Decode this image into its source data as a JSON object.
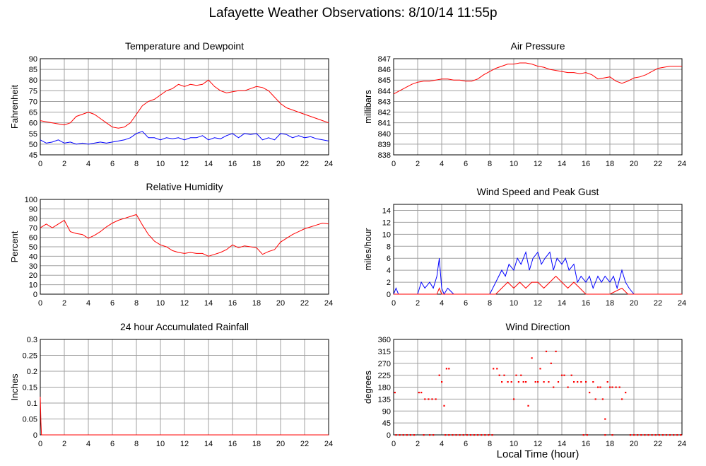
{
  "title": "Lafayette Weather Observations: 8/10/14 11:55p",
  "x_axis_caption": "Local Time (hour)",
  "colors": {
    "red": "#ff0000",
    "blue": "#0000ff",
    "grid": "#a0a0a0"
  },
  "chart_data": [
    {
      "id": "temp",
      "type": "line",
      "title": "Temperature and Dewpoint",
      "ylabel": "Fahrenheit",
      "xlabel": "",
      "xlim": [
        0,
        24
      ],
      "ylim": [
        45,
        90
      ],
      "xticks": [
        0,
        2,
        4,
        6,
        8,
        10,
        12,
        14,
        16,
        18,
        20,
        22,
        24
      ],
      "yticks": [
        45,
        50,
        55,
        60,
        65,
        70,
        75,
        80,
        85,
        90
      ],
      "grid": true,
      "series": [
        {
          "color": "#ff0000",
          "x": [
            0,
            0.5,
            1,
            1.5,
            2,
            2.5,
            3,
            3.5,
            4,
            4.5,
            5,
            5.5,
            6,
            6.5,
            7,
            7.5,
            8,
            8.5,
            9,
            9.5,
            10,
            10.5,
            11,
            11.5,
            12,
            12.5,
            13,
            13.5,
            14,
            14.5,
            15,
            15.5,
            16,
            16.5,
            17,
            17.5,
            18,
            18.5,
            19,
            19.5,
            20,
            20.5,
            21,
            21.5,
            22,
            22.5,
            23,
            23.5,
            24
          ],
          "values": [
            61,
            60.5,
            60,
            59.5,
            59,
            60,
            63,
            64,
            65,
            64,
            62,
            60,
            58,
            57.5,
            58,
            60,
            64,
            68,
            70,
            71,
            73,
            75,
            76,
            78,
            77,
            78,
            77.5,
            78,
            80,
            77,
            75,
            74,
            74.5,
            75,
            75,
            76,
            77,
            76.5,
            75,
            72,
            69,
            67,
            66,
            65,
            64,
            63,
            62,
            61,
            60
          ]
        },
        {
          "color": "#0000ff",
          "x": [
            0,
            0.5,
            1,
            1.5,
            2,
            2.5,
            3,
            3.5,
            4,
            4.5,
            5,
            5.5,
            6,
            6.5,
            7,
            7.5,
            8,
            8.5,
            9,
            9.5,
            10,
            10.5,
            11,
            11.5,
            12,
            12.5,
            13,
            13.5,
            14,
            14.5,
            15,
            15.5,
            16,
            16.5,
            17,
            17.5,
            18,
            18.5,
            19,
            19.5,
            20,
            20.5,
            21,
            21.5,
            22,
            22.5,
            23,
            23.5,
            24
          ],
          "values": [
            52,
            50.5,
            51,
            52,
            50.5,
            51,
            50,
            50.5,
            50,
            50.5,
            51,
            50.5,
            51,
            51.5,
            52,
            53,
            55,
            56,
            53,
            53,
            52,
            53,
            52.5,
            53,
            52,
            53,
            53,
            54,
            52,
            53,
            52.5,
            54,
            55,
            53,
            55,
            54.5,
            55,
            52,
            53,
            52,
            55,
            54.5,
            53,
            54,
            53,
            53.5,
            52.5,
            52,
            51.5
          ]
        }
      ]
    },
    {
      "id": "press",
      "type": "line",
      "title": "Air Pressure",
      "ylabel": "millibars",
      "xlabel": "",
      "xlim": [
        0,
        24
      ],
      "ylim": [
        838,
        847
      ],
      "xticks": [
        0,
        2,
        4,
        6,
        8,
        10,
        12,
        14,
        16,
        18,
        20,
        22,
        24
      ],
      "yticks": [
        838,
        839,
        840,
        841,
        842,
        843,
        844,
        845,
        846,
        847
      ],
      "grid": true,
      "series": [
        {
          "color": "#ff0000",
          "x": [
            0,
            0.5,
            1,
            1.5,
            2,
            2.5,
            3,
            3.5,
            4,
            4.5,
            5,
            5.5,
            6,
            6.5,
            7,
            7.5,
            8,
            8.5,
            9,
            9.5,
            10,
            10.5,
            11,
            11.5,
            12,
            12.5,
            13,
            13.5,
            14,
            14.5,
            15,
            15.5,
            16,
            16.5,
            17,
            17.5,
            18,
            18.5,
            19,
            19.5,
            20,
            20.5,
            21,
            21.5,
            22,
            22.5,
            23,
            23.5,
            24
          ],
          "values": [
            843.7,
            844,
            844.3,
            844.6,
            844.8,
            844.9,
            844.9,
            845,
            845.1,
            845.1,
            845,
            845,
            844.9,
            844.9,
            845.1,
            845.5,
            845.8,
            846.1,
            846.3,
            846.5,
            846.5,
            846.6,
            846.6,
            846.5,
            846.3,
            846.2,
            846,
            845.9,
            845.8,
            845.7,
            845.7,
            845.6,
            845.7,
            845.5,
            845.1,
            845.2,
            845.3,
            844.9,
            844.7,
            844.9,
            845.2,
            845.3,
            845.5,
            845.8,
            846.1,
            846.2,
            846.3,
            846.3,
            846.3
          ]
        }
      ]
    },
    {
      "id": "rh",
      "type": "line",
      "title": "Relative Humidity",
      "ylabel": "Percent",
      "xlabel": "",
      "xlim": [
        0,
        24
      ],
      "ylim": [
        0,
        100
      ],
      "xticks": [
        0,
        2,
        4,
        6,
        8,
        10,
        12,
        14,
        16,
        18,
        20,
        22,
        24
      ],
      "yticks": [
        0,
        10,
        20,
        30,
        40,
        50,
        60,
        70,
        80,
        90,
        100
      ],
      "grid": true,
      "series": [
        {
          "color": "#ff0000",
          "x": [
            0,
            0.5,
            1,
            1.5,
            2,
            2.5,
            3,
            3.5,
            4,
            4.5,
            5,
            5.5,
            6,
            6.5,
            7,
            7.5,
            8,
            8.5,
            9,
            9.5,
            10,
            10.5,
            11,
            11.5,
            12,
            12.5,
            13,
            13.5,
            14,
            14.5,
            15,
            15.5,
            16,
            16.5,
            17,
            17.5,
            18,
            18.5,
            19,
            19.5,
            20,
            20.5,
            21,
            21.5,
            22,
            22.5,
            23,
            23.5,
            24
          ],
          "values": [
            70,
            74,
            70,
            74,
            78,
            66,
            64,
            63,
            59,
            62,
            66,
            71,
            75,
            78,
            80,
            82,
            84,
            73,
            63,
            56,
            52,
            50,
            46,
            44,
            43,
            44,
            43,
            43,
            40,
            42,
            44,
            47,
            52,
            49,
            51,
            50,
            49,
            42,
            45,
            47,
            55,
            59,
            63,
            66,
            69,
            71,
            73,
            75,
            74
          ]
        }
      ]
    },
    {
      "id": "wind",
      "type": "line",
      "title": "Wind Speed and Peak Gust",
      "ylabel": "miles/hour",
      "xlabel": "",
      "xlim": [
        0,
        24
      ],
      "ylim": [
        0,
        15
      ],
      "xticks": [
        0,
        2,
        4,
        6,
        8,
        10,
        12,
        14,
        16,
        18,
        20,
        22,
        24
      ],
      "yticks": [
        0,
        2,
        4,
        6,
        8,
        10,
        12,
        14
      ],
      "grid": true,
      "series": [
        {
          "color": "#0000ff",
          "x": [
            0,
            0.2,
            0.4,
            1,
            2,
            2.3,
            2.6,
            3,
            3.3,
            3.6,
            3.8,
            4,
            4.2,
            4.5,
            5,
            8,
            8.5,
            9,
            9.3,
            9.6,
            10,
            10.3,
            10.6,
            11,
            11.3,
            11.6,
            12,
            12.3,
            12.6,
            13,
            13.3,
            13.6,
            14,
            14.3,
            14.6,
            15,
            15.3,
            15.6,
            16,
            16.3,
            16.6,
            17,
            17.3,
            17.6,
            18,
            18.3,
            18.6,
            19,
            19.3,
            19.6,
            20,
            24
          ],
          "values": [
            0,
            1,
            0,
            0,
            0,
            2,
            1,
            2,
            1,
            3,
            6,
            1,
            0,
            1,
            0,
            0,
            2,
            4,
            3,
            5,
            4,
            6,
            5,
            7,
            4,
            6,
            7,
            5,
            6,
            7,
            4,
            6,
            5,
            6,
            4,
            5,
            2,
            3,
            2,
            3,
            1,
            3,
            2,
            3,
            2,
            3,
            1,
            4,
            2,
            1,
            0,
            0
          ]
        },
        {
          "color": "#ff0000",
          "x": [
            0,
            3.6,
            3.8,
            4,
            8.5,
            9,
            9.5,
            10,
            10.5,
            11,
            11.5,
            12,
            12.5,
            13,
            13.5,
            14,
            14.5,
            15,
            15.5,
            16,
            17,
            18,
            19,
            19.5,
            24
          ],
          "values": [
            0,
            0,
            1,
            0,
            0,
            1,
            2,
            1,
            2,
            1,
            2,
            2,
            1,
            2,
            3,
            2,
            1,
            2,
            1,
            0,
            0,
            0,
            1,
            0,
            0
          ]
        }
      ]
    },
    {
      "id": "rain",
      "type": "line",
      "title": "24 hour Accumulated Rainfall",
      "ylabel": "Inches",
      "xlabel": "",
      "xlim": [
        0,
        24
      ],
      "ylim": [
        0,
        0.3
      ],
      "xticks": [
        0,
        2,
        4,
        6,
        8,
        10,
        12,
        14,
        16,
        18,
        20,
        22,
        24
      ],
      "yticks": [
        0,
        0.05,
        0.1,
        0.15,
        0.2,
        0.25,
        0.3
      ],
      "grid": true,
      "series": [
        {
          "color": "#ff0000",
          "x": [
            0,
            0.05,
            0.1,
            24
          ],
          "values": [
            0.12,
            0.04,
            0,
            0
          ]
        }
      ]
    },
    {
      "id": "dir",
      "type": "scatter",
      "title": "Wind Direction",
      "ylabel": "degrees",
      "xlabel": "Local Time (hour)",
      "xlim": [
        0,
        24
      ],
      "ylim": [
        0,
        360
      ],
      "xticks": [
        0,
        2,
        4,
        6,
        8,
        10,
        12,
        14,
        16,
        18,
        20,
        22,
        24
      ],
      "yticks": [
        0,
        45,
        90,
        135,
        180,
        225,
        270,
        315,
        360
      ],
      "grid": true,
      "series": [
        {
          "color": "#ff0000",
          "x": [
            0.1,
            2.1,
            2.3,
            2.6,
            2.9,
            3.2,
            3.5,
            3.8,
            4,
            4.2,
            4.4,
            4.6,
            8.3,
            8.6,
            8.8,
            9,
            9.2,
            9.5,
            9.8,
            10,
            10.2,
            10.4,
            10.6,
            10.8,
            11,
            11.2,
            11.5,
            11.8,
            12,
            12.2,
            12.5,
            12.7,
            12.9,
            13.1,
            13.3,
            13.5,
            13.7,
            14,
            14.2,
            14.5,
            14.8,
            15,
            15.3,
            15.6,
            16,
            16.3,
            16.6,
            16.8,
            17,
            17.2,
            17.4,
            17.6,
            17.8,
            18,
            18.2,
            18.5,
            18.8,
            19,
            19.3
          ],
          "values": [
            160,
            160,
            160,
            135,
            135,
            135,
            135,
            225,
            200,
            110,
            250,
            250,
            250,
            250,
            225,
            200,
            225,
            200,
            200,
            135,
            225,
            200,
            225,
            200,
            200,
            110,
            290,
            200,
            200,
            250,
            200,
            315,
            200,
            270,
            180,
            315,
            200,
            225,
            225,
            180,
            225,
            200,
            200,
            200,
            200,
            160,
            200,
            135,
            180,
            180,
            135,
            60,
            200,
            180,
            180,
            180,
            180,
            135,
            160
          ]
        },
        {
          "color": "#ff0000",
          "x": [
            0.2,
            0.5,
            0.8,
            1.1,
            1.4,
            1.7,
            2.5,
            3,
            3.3,
            4.3,
            4.6,
            4.9,
            5.2,
            5.5,
            5.8,
            6.1,
            6.4,
            6.7,
            7,
            7.3,
            7.6,
            7.9,
            8.2,
            15.8,
            16.1,
            17.6,
            18.2,
            19.7,
            20,
            20.3,
            20.6,
            20.9,
            21.2,
            21.5,
            21.8,
            22.1,
            22.4,
            22.7,
            23,
            23.3,
            23.6,
            23.9
          ],
          "values": [
            0,
            0,
            0,
            0,
            0,
            0,
            0,
            0,
            0,
            0,
            0,
            0,
            0,
            0,
            0,
            0,
            0,
            0,
            0,
            0,
            0,
            0,
            0,
            0,
            0,
            0,
            0,
            0,
            0,
            0,
            0,
            0,
            0,
            0,
            0,
            0,
            0,
            0,
            0,
            0,
            0,
            0
          ]
        }
      ]
    }
  ]
}
